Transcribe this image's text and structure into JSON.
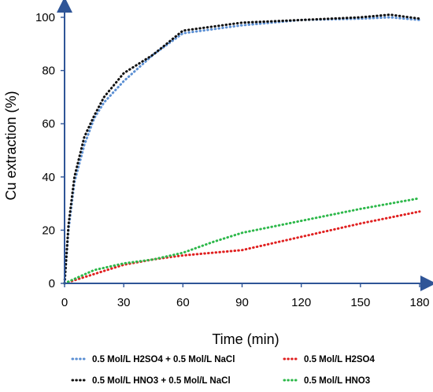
{
  "chart_data": {
    "type": "line",
    "title": "",
    "xlabel": "Time (min)",
    "ylabel": "Cu extraction (%)",
    "xlim": [
      0,
      180
    ],
    "ylim": [
      0,
      100
    ],
    "xticks": [
      "0",
      "30",
      "60",
      "90",
      "120",
      "150",
      "180"
    ],
    "yticks": [
      "0",
      "20",
      "40",
      "60",
      "80",
      "100"
    ],
    "grid": false,
    "legend_position": "bottom",
    "series": [
      {
        "name": "0.5 Mol/L H2SO4 + 0.5 Mol/L NaCl",
        "color": "#5B8FD3",
        "style": "dotted",
        "x": [
          0,
          2,
          5,
          10,
          15,
          20,
          30,
          45,
          60,
          90,
          120,
          150,
          165,
          180
        ],
        "y": [
          0,
          20,
          38,
          52,
          62,
          68,
          76,
          86,
          94,
          97,
          99,
          99.5,
          100,
          99
        ]
      },
      {
        "name": "0.5 Mol/L H2SO4",
        "color": "#E02020",
        "style": "dotted",
        "x": [
          0,
          15,
          30,
          45,
          60,
          90,
          120,
          150,
          180
        ],
        "y": [
          0,
          3.5,
          7,
          9,
          10.5,
          12.5,
          17.5,
          22.5,
          27
        ]
      },
      {
        "name": "0.5 Mol/L HNO3 + 0.5 Mol/L NaCl",
        "color": "#111111",
        "style": "dotted",
        "x": [
          0,
          2,
          5,
          10,
          15,
          20,
          30,
          45,
          60,
          90,
          120,
          150,
          165,
          180
        ],
        "y": [
          0,
          22,
          40,
          55,
          63,
          70,
          79,
          86,
          95,
          98,
          99,
          100,
          101,
          99.5
        ]
      },
      {
        "name": "0.5 Mol/L HNO3",
        "color": "#2DB84A",
        "style": "dotted",
        "x": [
          0,
          15,
          30,
          45,
          60,
          75,
          90,
          120,
          150,
          180
        ],
        "y": [
          0,
          5,
          7.5,
          9,
          11.5,
          15.5,
          19,
          23.5,
          28,
          32
        ]
      }
    ]
  }
}
